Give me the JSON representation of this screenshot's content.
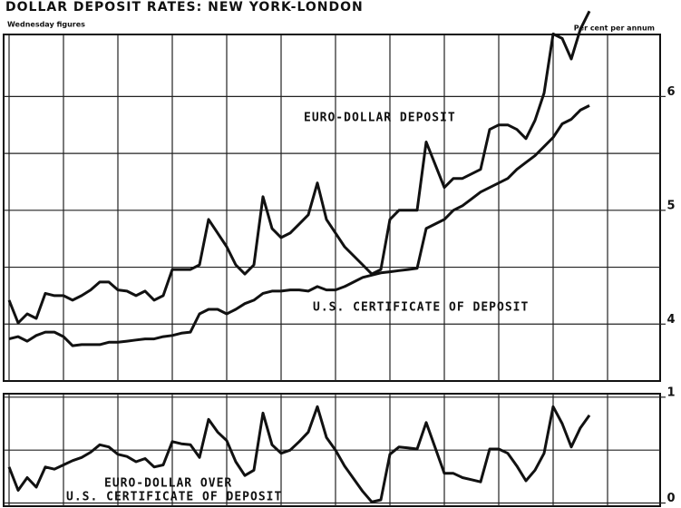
{
  "chart_data": [
    {
      "type": "line",
      "title": "DOLLAR DEPOSIT RATES: NEW YORK-LONDON",
      "subtitle": "Wednesday figures",
      "unit_label": "Per cent per annum",
      "x": [
        0,
        1,
        2,
        3,
        4,
        5,
        6,
        7,
        8,
        9,
        10,
        11,
        12,
        13,
        14,
        15,
        16,
        17,
        18,
        19,
        20,
        21,
        22,
        23,
        24,
        25,
        26,
        27,
        28,
        29,
        30,
        31,
        32,
        33,
        34,
        35,
        36,
        37,
        38,
        39,
        40,
        41,
        42,
        43,
        44,
        45,
        46,
        47,
        48,
        49,
        50,
        51,
        52,
        53,
        54,
        55,
        56,
        57,
        58,
        59,
        60,
        61,
        62,
        63,
        64
      ],
      "xlim": [
        -0.6,
        71.8
      ],
      "xticks": [
        0,
        6,
        12,
        18,
        24,
        30,
        36,
        42,
        48,
        54,
        60,
        66
      ],
      "ylim": [
        3.5,
        6.8
      ],
      "yticks": [
        4,
        5,
        6
      ],
      "minor_yticks": [
        4.5,
        5.5
      ],
      "grid": true,
      "series": [
        {
          "name": "EURO-DOLLAR DEPOSIT",
          "color": "#111111",
          "values": [
            4.21,
            4.01,
            4.09,
            4.05,
            4.27,
            4.25,
            4.25,
            4.21,
            4.25,
            4.3,
            4.37,
            4.37,
            4.3,
            4.29,
            4.25,
            4.29,
            4.21,
            4.25,
            4.48,
            4.48,
            4.48,
            4.52,
            4.92,
            4.8,
            4.68,
            4.52,
            4.44,
            4.52,
            5.12,
            4.84,
            4.76,
            4.8,
            4.88,
            4.96,
            5.24,
            4.92,
            4.8,
            4.68,
            4.6,
            4.52,
            4.44,
            4.48,
            4.92,
            5.0,
            5.0,
            5.0,
            5.6,
            5.4,
            5.2,
            5.28,
            5.28,
            5.32,
            5.36,
            5.71,
            5.75,
            5.75,
            5.71,
            5.63,
            5.79,
            6.03,
            6.55,
            6.51,
            6.33,
            6.59,
            6.75
          ]
        },
        {
          "name": "U.S. CERTIFICATE OF DEPOSIT",
          "color": "#111111",
          "values": [
            3.87,
            3.89,
            3.85,
            3.9,
            3.93,
            3.93,
            3.89,
            3.81,
            3.82,
            3.82,
            3.82,
            3.84,
            3.84,
            3.85,
            3.86,
            3.87,
            3.87,
            3.89,
            3.9,
            3.92,
            3.93,
            4.09,
            4.13,
            4.13,
            4.09,
            4.13,
            4.18,
            4.21,
            4.27,
            4.29,
            4.29,
            4.3,
            4.3,
            4.29,
            4.33,
            4.3,
            4.3,
            4.33,
            4.37,
            4.41,
            4.43,
            4.45,
            4.46,
            4.47,
            4.48,
            4.49,
            4.84,
            4.88,
            4.92,
            5.0,
            5.04,
            5.1,
            5.16,
            5.2,
            5.24,
            5.28,
            5.36,
            5.42,
            5.48,
            5.56,
            5.64,
            5.76,
            5.8,
            5.88,
            5.92
          ]
        }
      ]
    },
    {
      "type": "line",
      "x": [
        0,
        1,
        2,
        3,
        4,
        5,
        6,
        7,
        8,
        9,
        10,
        11,
        12,
        13,
        14,
        15,
        16,
        17,
        18,
        19,
        20,
        21,
        22,
        23,
        24,
        25,
        26,
        27,
        28,
        29,
        30,
        31,
        32,
        33,
        34,
        35,
        36,
        37,
        38,
        39,
        40,
        41,
        42,
        43,
        44,
        45,
        46,
        47,
        48,
        49,
        50,
        51,
        52,
        53,
        54,
        55,
        56,
        57,
        58,
        59,
        60,
        61,
        62,
        63,
        64
      ],
      "xlim": [
        -0.6,
        71.8
      ],
      "xticks": [
        0,
        6,
        12,
        18,
        24,
        30,
        36,
        42,
        48,
        54,
        60,
        66
      ],
      "ylim": [
        -0.03,
        1.05
      ],
      "yticks": [
        0,
        1
      ],
      "minor_yticks": [
        0.5
      ],
      "grid": true,
      "series": [
        {
          "label_lines": [
            "EURO-DOLLAR OVER",
            "U.S. CERTIFICATE OF DEPOSIT"
          ],
          "color": "#111111",
          "values": [
            0.34,
            0.12,
            0.24,
            0.15,
            0.34,
            0.32,
            0.36,
            0.4,
            0.43,
            0.48,
            0.55,
            0.53,
            0.46,
            0.44,
            0.39,
            0.42,
            0.34,
            0.36,
            0.58,
            0.56,
            0.55,
            0.43,
            0.79,
            0.67,
            0.59,
            0.39,
            0.26,
            0.31,
            0.85,
            0.55,
            0.47,
            0.5,
            0.58,
            0.67,
            0.91,
            0.62,
            0.5,
            0.35,
            0.23,
            0.11,
            0.01,
            0.03,
            0.46,
            0.53,
            0.52,
            0.51,
            0.76,
            0.52,
            0.28,
            0.28,
            0.24,
            0.22,
            0.2,
            0.51,
            0.51,
            0.47,
            0.35,
            0.21,
            0.31,
            0.47,
            0.91,
            0.75,
            0.53,
            0.71,
            0.83
          ]
        }
      ]
    }
  ]
}
